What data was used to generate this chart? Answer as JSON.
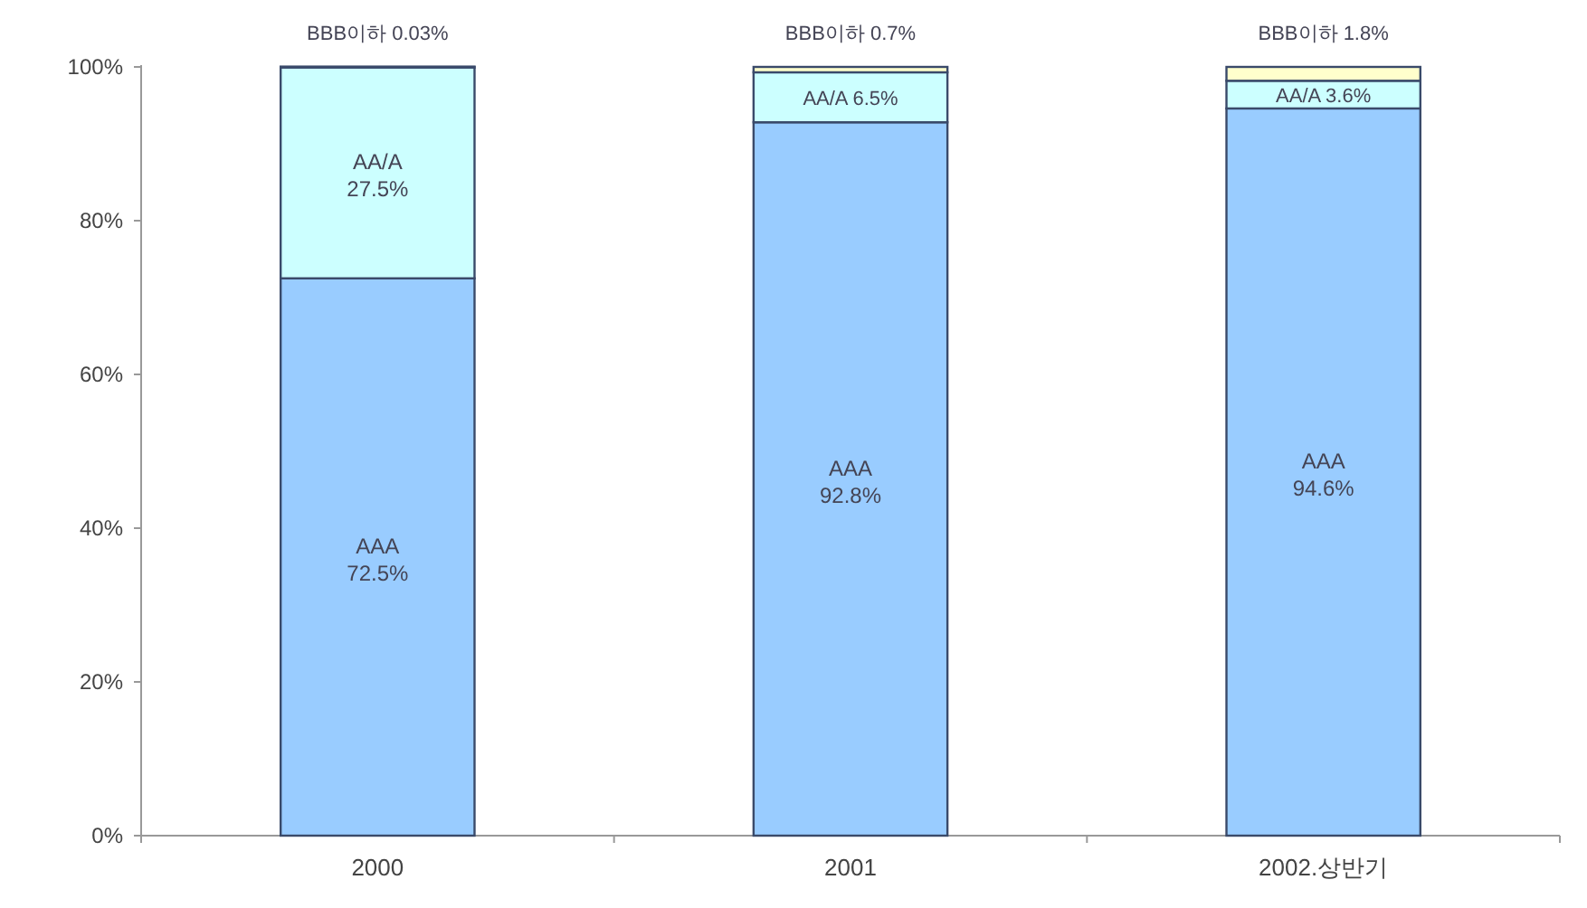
{
  "chart_data": {
    "type": "bar",
    "stacked": true,
    "categories": [
      "2000",
      "2001",
      "2002.상반기"
    ],
    "ylim": [
      0,
      100
    ],
    "yticks": [
      {
        "value": 0,
        "label": "0%"
      },
      {
        "value": 20,
        "label": "20%"
      },
      {
        "value": 40,
        "label": "40%"
      },
      {
        "value": 60,
        "label": "60%"
      },
      {
        "value": 80,
        "label": "80%"
      },
      {
        "value": 100,
        "label": "100%"
      }
    ],
    "grid": false,
    "legend": false,
    "series": [
      {
        "name": "AAA",
        "color": "#99ccff",
        "values": [
          72.5,
          92.8,
          94.6
        ],
        "value_labels": [
          "72.5%",
          "92.8%",
          "94.6%"
        ]
      },
      {
        "name": "AA/A",
        "color": "#ccffff",
        "values": [
          27.5,
          6.5,
          3.6
        ],
        "value_labels": [
          "27.5%",
          "6.5%",
          "3.6%"
        ]
      },
      {
        "name": "BBB이하",
        "color": "#ffffcc",
        "values": [
          0.03,
          0.7,
          1.8
        ],
        "value_labels": [
          "0.03%",
          "0.7%",
          "1.8%"
        ]
      }
    ]
  }
}
